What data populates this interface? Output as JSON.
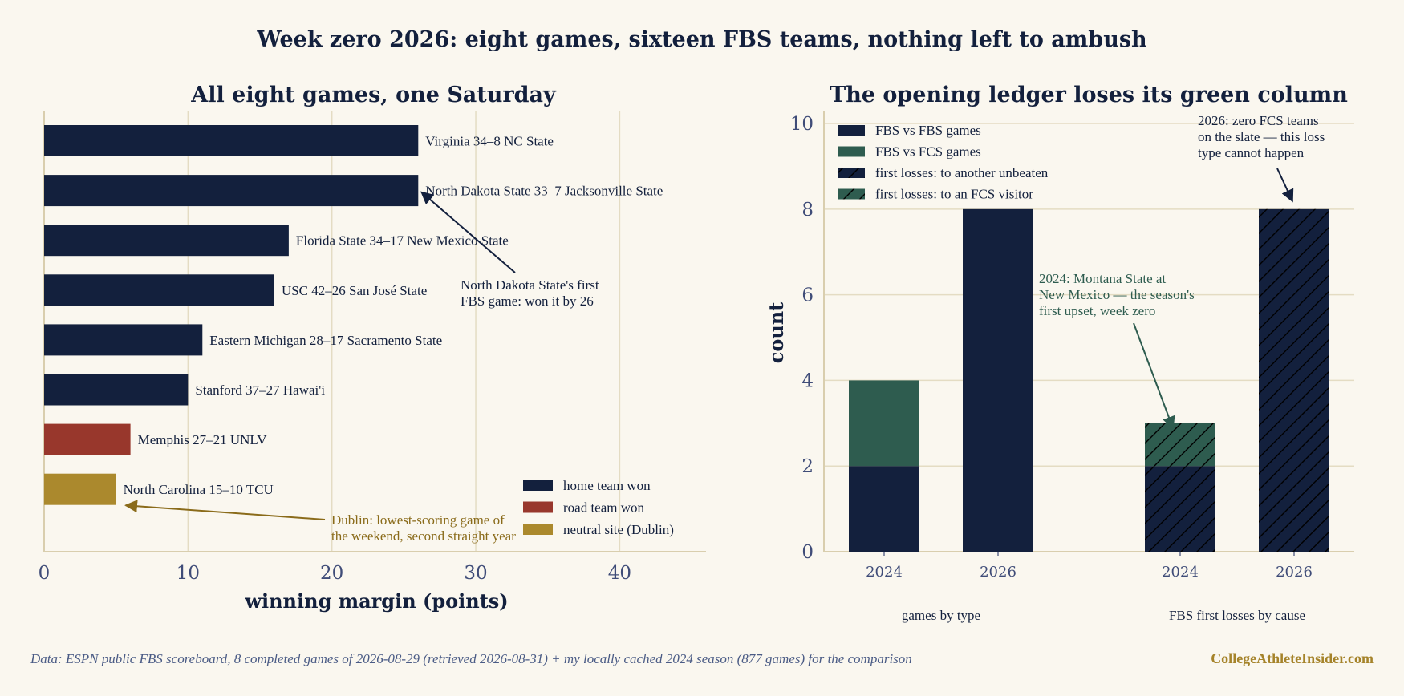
{
  "page": {
    "suptitle": "Week zero 2026: eight games, sixteen FBS teams, nothing left to ambush",
    "source": "Data: ESPN public FBS scoreboard, 8 completed games of 2026-08-29 (retrieved 2026-08-31) + my locally cached 2024 season (877 games) for the comparison",
    "brand": "CollegeAthleteInsider.com"
  },
  "colors": {
    "navy": "#13203d",
    "red": "#98372c",
    "gold": "#ab892d",
    "green": "#2e5c4f",
    "background": "#faf7ef",
    "grid": "#e4dcc3",
    "tick": "#3f4c78",
    "source_text": "#4a5b85",
    "ann_gold": "#8a6b1a"
  },
  "chart_data": [
    {
      "type": "bar",
      "orientation": "horizontal",
      "title": "All eight games, one Saturday",
      "xlabel": "winning margin (points)",
      "ylabel": "",
      "xlim": [
        0,
        46
      ],
      "xticks": [
        0,
        10,
        20,
        30,
        40
      ],
      "grid": "vertical",
      "legend_position": "lower-right",
      "legend": [
        {
          "label": "home team won",
          "color": "#13203d"
        },
        {
          "label": "road team won",
          "color": "#98372c"
        },
        {
          "label": "neutral site (Dublin)",
          "color": "#ab892d"
        }
      ],
      "bars": [
        {
          "label": "Virginia 34–8 NC State",
          "value": 26,
          "site": "home"
        },
        {
          "label": "North Dakota State 33–7 Jacksonville State",
          "value": 26,
          "site": "home"
        },
        {
          "label": "Florida State 34–17 New Mexico State",
          "value": 17,
          "site": "home"
        },
        {
          "label": "USC 42–26 San José State",
          "value": 16,
          "site": "home"
        },
        {
          "label": "Eastern Michigan 28–17 Sacramento State",
          "value": 11,
          "site": "home"
        },
        {
          "label": "Stanford 37–27 Hawai'i",
          "value": 10,
          "site": "home"
        },
        {
          "label": "Memphis 27–21 UNLV",
          "value": 6,
          "site": "road"
        },
        {
          "label": "North Carolina 15–10 TCU",
          "value": 5,
          "site": "neutral"
        }
      ],
      "annotations": [
        {
          "text": [
            "North Dakota State's first",
            "FBS game: won it by 26"
          ],
          "target_bar": 1,
          "target_value": 26,
          "color": "#13203d"
        },
        {
          "text": [
            "Dublin: lowest-scoring game of",
            "the weekend, second straight year"
          ],
          "target_bar": 7,
          "target_value": 5.5,
          "color": "#8a6b1a"
        }
      ]
    },
    {
      "type": "bar",
      "stacked": true,
      "title": "The opening ledger loses its green column",
      "xlabel": "",
      "ylabel": "count",
      "ylim": [
        0,
        10.3
      ],
      "yticks": [
        0,
        2,
        4,
        6,
        8,
        10
      ],
      "grid": "horizontal",
      "legend_position": "top-left",
      "legend": [
        {
          "label": "FBS vs FBS games",
          "color": "#13203d",
          "hatch": false
        },
        {
          "label": "FBS vs FCS games",
          "color": "#2e5c4f",
          "hatch": false
        },
        {
          "label": "first losses: to another unbeaten",
          "color": "#13203d",
          "hatch": true
        },
        {
          "label": "first losses: to an FCS visitor",
          "color": "#2e5c4f",
          "hatch": true
        }
      ],
      "groups": [
        {
          "label": "games by type",
          "categories": [
            "2024",
            "2026"
          ],
          "series": [
            {
              "name": "FBS vs FBS games",
              "values": [
                2,
                8
              ]
            },
            {
              "name": "FBS vs FCS games",
              "values": [
                2,
                0
              ]
            }
          ]
        },
        {
          "label": "FBS first losses by cause",
          "categories": [
            "2024",
            "2026"
          ],
          "series": [
            {
              "name": "first losses: to another unbeaten",
              "values": [
                2,
                8
              ]
            },
            {
              "name": "first losses: to an FCS visitor",
              "values": [
                1,
                0
              ]
            }
          ]
        }
      ],
      "annotations": [
        {
          "text": [
            "2024: Montana State at",
            "New Mexico — the season's",
            "first upset, week zero"
          ],
          "color": "#2e5c4f",
          "target": "2024 first losses, FCS segment"
        },
        {
          "text": [
            "2026: zero FCS teams",
            "on the slate — this loss",
            "type cannot happen"
          ],
          "color": "#13203d",
          "target": "2026 first losses, top"
        }
      ]
    }
  ]
}
